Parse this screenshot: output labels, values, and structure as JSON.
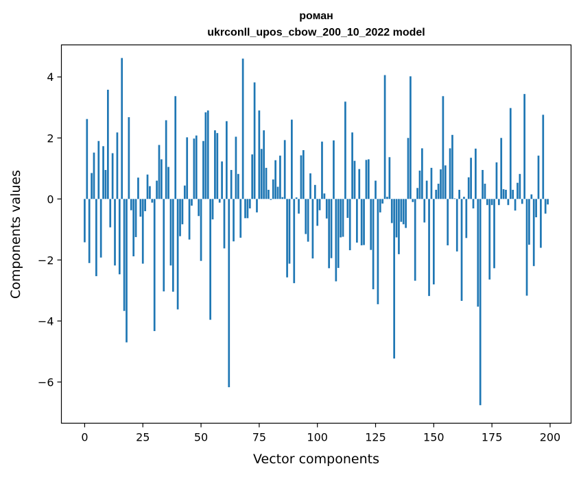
{
  "chart_data": {
    "type": "bar",
    "title": "роман",
    "subtitle": "ukrconll_upos_cbow_200_10_2022 model",
    "xlabel": "Vector components",
    "ylabel": "Components values",
    "xlim": [
      -10,
      209
    ],
    "ylim": [
      -7.35,
      5.05
    ],
    "xticks": [
      0,
      25,
      50,
      75,
      100,
      125,
      150,
      175,
      200
    ],
    "yticks": [
      -6,
      -4,
      -2,
      0,
      2,
      4
    ],
    "grid": false,
    "bar_color": "#1f77b4",
    "values": [
      -1.42,
      2.62,
      -2.1,
      0.85,
      1.52,
      -2.53,
      1.9,
      -1.92,
      1.73,
      0.95,
      3.58,
      -0.93,
      1.5,
      -2.18,
      2.18,
      -2.47,
      4.62,
      -3.67,
      -4.7,
      2.68,
      -0.37,
      -1.88,
      -1.25,
      0.7,
      -0.58,
      -2.12,
      -0.4,
      0.8,
      0.42,
      -0.12,
      -4.33,
      0.6,
      1.77,
      1.3,
      -3.03,
      2.58,
      1.05,
      -2.18,
      -3.04,
      3.37,
      -3.62,
      -1.22,
      -0.83,
      0.44,
      2.02,
      -1.33,
      -0.22,
      1.98,
      2.08,
      -0.56,
      -2.03,
      1.9,
      2.84,
      2.9,
      -3.96,
      -0.67,
      2.25,
      2.16,
      -0.12,
      1.23,
      -1.62,
      2.55,
      -6.17,
      0.95,
      -1.39,
      2.04,
      0.82,
      -1.27,
      4.6,
      -0.63,
      -0.63,
      -0.31,
      1.46,
      3.82,
      -0.44,
      2.9,
      1.64,
      2.25,
      1.02,
      0.3,
      -0.03,
      0.64,
      1.27,
      0.4,
      1.42,
      0.06,
      1.93,
      -2.57,
      -2.12,
      2.6,
      -2.76,
      0.05,
      -0.48,
      1.43,
      1.6,
      -1.15,
      -1.4,
      0.84,
      -1.95,
      0.46,
      -0.88,
      -0.37,
      1.88,
      0.18,
      -0.64,
      -2.27,
      -1.94,
      1.92,
      -2.7,
      -2.26,
      -1.26,
      -1.24,
      3.19,
      -0.62,
      -1.68,
      2.18,
      1.25,
      -1.43,
      0.98,
      -1.52,
      -1.51,
      1.28,
      1.3,
      -1.67,
      -2.96,
      0.6,
      -3.45,
      -0.44,
      -0.15,
      4.06,
      0.07,
      1.37,
      -0.79,
      -5.23,
      -1.26,
      -1.81,
      -0.75,
      -0.83,
      -0.95,
      2.0,
      4.02,
      -0.1,
      -2.68,
      0.36,
      0.93,
      1.66,
      -0.77,
      0.6,
      -3.18,
      1.02,
      -2.8,
      0.3,
      0.5,
      0.97,
      3.37,
      1.1,
      -1.52,
      1.66,
      2.1,
      0.02,
      -1.72,
      0.3,
      -3.34,
      0.07,
      -1.28,
      0.71,
      1.35,
      -0.31,
      1.65,
      -3.53,
      -6.76,
      0.95,
      0.5,
      -0.2,
      -2.64,
      -0.2,
      -2.27,
      1.2,
      -0.2,
      2.0,
      0.32,
      0.3,
      -0.2,
      2.98,
      0.3,
      -0.38,
      0.53,
      0.82,
      -0.16,
      3.44,
      -3.17,
      -1.5,
      0.15,
      -2.2,
      -0.6,
      1.42,
      -1.6,
      2.76,
      -0.48,
      -0.18
    ]
  }
}
